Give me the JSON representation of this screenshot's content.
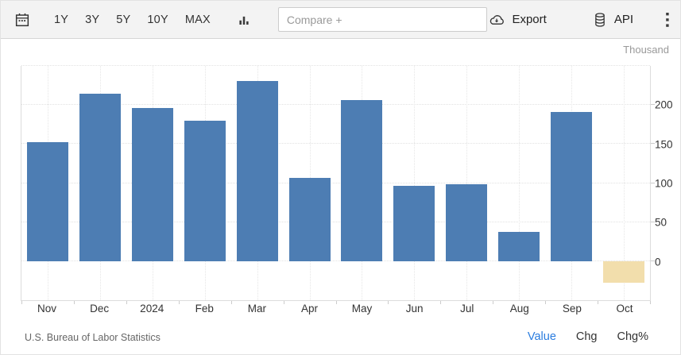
{
  "toolbar": {
    "ranges": [
      "1Y",
      "3Y",
      "5Y",
      "10Y",
      "MAX"
    ],
    "compare_placeholder": "Compare +",
    "export_label": "Export",
    "api_label": "API"
  },
  "chart_data": {
    "type": "bar",
    "unit_label": "Thousand",
    "categories": [
      "Nov",
      "Dec",
      "2024",
      "Feb",
      "Mar",
      "Apr",
      "May",
      "Jun",
      "Jul",
      "Aug",
      "Sep",
      "Oct"
    ],
    "values": [
      152,
      214,
      196,
      180,
      231,
      107,
      206,
      96,
      99,
      37,
      191,
      -28
    ],
    "ylim": [
      -50,
      250
    ],
    "ytick_step": 50,
    "ytick_labels": [
      "0",
      "50",
      "100",
      "150",
      "200"
    ],
    "grid": true,
    "legend": "none",
    "bar_color_positive": "#4d7db3",
    "bar_color_negative": "#f2deac"
  },
  "footer": {
    "source": "U.S. Bureau of Labor Statistics",
    "views": [
      {
        "label": "Value",
        "active": true
      },
      {
        "label": "Chg",
        "active": false
      },
      {
        "label": "Chg%",
        "active": false
      }
    ],
    "active_link_color": "#2a7cdf"
  }
}
